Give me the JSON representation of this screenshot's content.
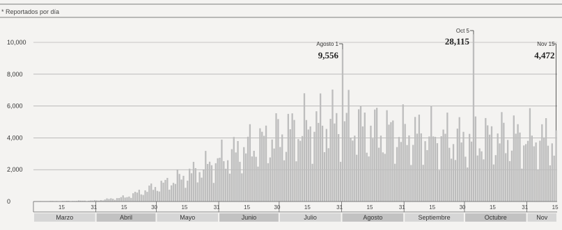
{
  "chart_data": {
    "type": "bar",
    "subtitle": "* Reportados por día",
    "ylim": [
      0,
      10000
    ],
    "yticks": [
      0,
      2000,
      4000,
      6000,
      8000,
      10000
    ],
    "ytick_labels": [
      "0",
      "2,000",
      "4,000",
      "6,000",
      "8,000",
      "10,000"
    ],
    "grid": true,
    "start_date": "2020-03-01",
    "days": 260,
    "months": [
      {
        "label": "Marzo",
        "start": 0,
        "days": 31,
        "ticks": [
          "15",
          "31"
        ]
      },
      {
        "label": "Abril",
        "start": 31,
        "days": 30,
        "ticks": [
          "15",
          "30"
        ]
      },
      {
        "label": "Mayo",
        "start": 61,
        "days": 31,
        "ticks": [
          "15",
          "31"
        ]
      },
      {
        "label": "Junio",
        "start": 92,
        "days": 30,
        "ticks": [
          "15",
          "30"
        ]
      },
      {
        "label": "Julio",
        "start": 122,
        "days": 31,
        "ticks": [
          "15",
          "31"
        ]
      },
      {
        "label": "Agosto",
        "start": 153,
        "days": 31,
        "ticks": [
          "15",
          "31"
        ]
      },
      {
        "label": "Septiembre",
        "start": 184,
        "days": 30,
        "ticks": [
          "15",
          "30"
        ]
      },
      {
        "label": "Octubre",
        "start": 214,
        "days": 31,
        "ticks": [
          "15",
          "31"
        ]
      },
      {
        "label": "Nov",
        "start": 245,
        "days": 15,
        "ticks": [
          "15"
        ]
      }
    ],
    "annotations": [
      {
        "day": 153,
        "label": "Agosto 1",
        "value_text": "9,556",
        "value": 9556
      },
      {
        "day": 218,
        "label": "Oct 5",
        "value_text": "28,115",
        "value": 28115
      },
      {
        "day": 259,
        "label": "Nov 15",
        "value_text": "4,472",
        "value": 4472
      }
    ],
    "anchors": [
      {
        "day": 0,
        "value": 20
      },
      {
        "day": 15,
        "value": 40
      },
      {
        "day": 31,
        "value": 80
      },
      {
        "day": 45,
        "value": 350
      },
      {
        "day": 61,
        "value": 1200
      },
      {
        "day": 75,
        "value": 2000
      },
      {
        "day": 92,
        "value": 3300
      },
      {
        "day": 105,
        "value": 4200
      },
      {
        "day": 122,
        "value": 5200
      },
      {
        "day": 137,
        "value": 6000
      },
      {
        "day": 153,
        "value": 6300
      },
      {
        "day": 168,
        "value": 5600
      },
      {
        "day": 184,
        "value": 5300
      },
      {
        "day": 199,
        "value": 5100
      },
      {
        "day": 214,
        "value": 4800
      },
      {
        "day": 230,
        "value": 5100
      },
      {
        "day": 245,
        "value": 5000
      },
      {
        "day": 259,
        "value": 4800
      }
    ]
  }
}
